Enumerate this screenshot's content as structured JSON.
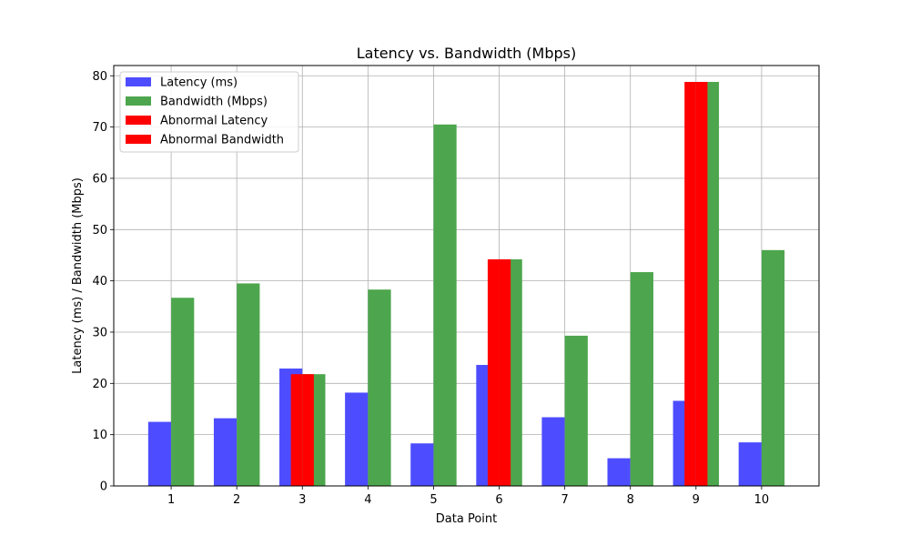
{
  "chart_data": {
    "type": "bar",
    "title": "Latency vs. Bandwidth (Mbps)",
    "xlabel": "Data Point",
    "ylabel": "Latency (ms) / Bandwidth (Mbps)",
    "ylim": [
      0,
      82
    ],
    "yticks": [
      0,
      10,
      20,
      30,
      40,
      50,
      60,
      70,
      80
    ],
    "grid": true,
    "legend_position": "top-left",
    "categories": [
      "1",
      "2",
      "3",
      "4",
      "5",
      "6",
      "7",
      "8",
      "9",
      "10"
    ],
    "series": [
      {
        "name": "Latency (ms)",
        "color": "#4d4dff",
        "values": [
          12.5,
          13.2,
          22.9,
          18.2,
          8.3,
          23.6,
          13.4,
          5.4,
          16.6,
          8.5
        ]
      },
      {
        "name": "Bandwidth (Mbps)",
        "color": "#4da64d",
        "values": [
          36.7,
          39.5,
          21.8,
          38.3,
          70.5,
          44.2,
          29.3,
          41.7,
          78.8,
          46.0
        ]
      }
    ],
    "anomalies": {
      "latency": {
        "name": "Abnormal Latency",
        "color": "#ff0000",
        "indices": [
          2,
          5,
          8
        ]
      },
      "bandwidth": {
        "name": "Abnormal Bandwidth",
        "color": "#ff0000",
        "indices": [
          2,
          5,
          8
        ]
      }
    }
  }
}
